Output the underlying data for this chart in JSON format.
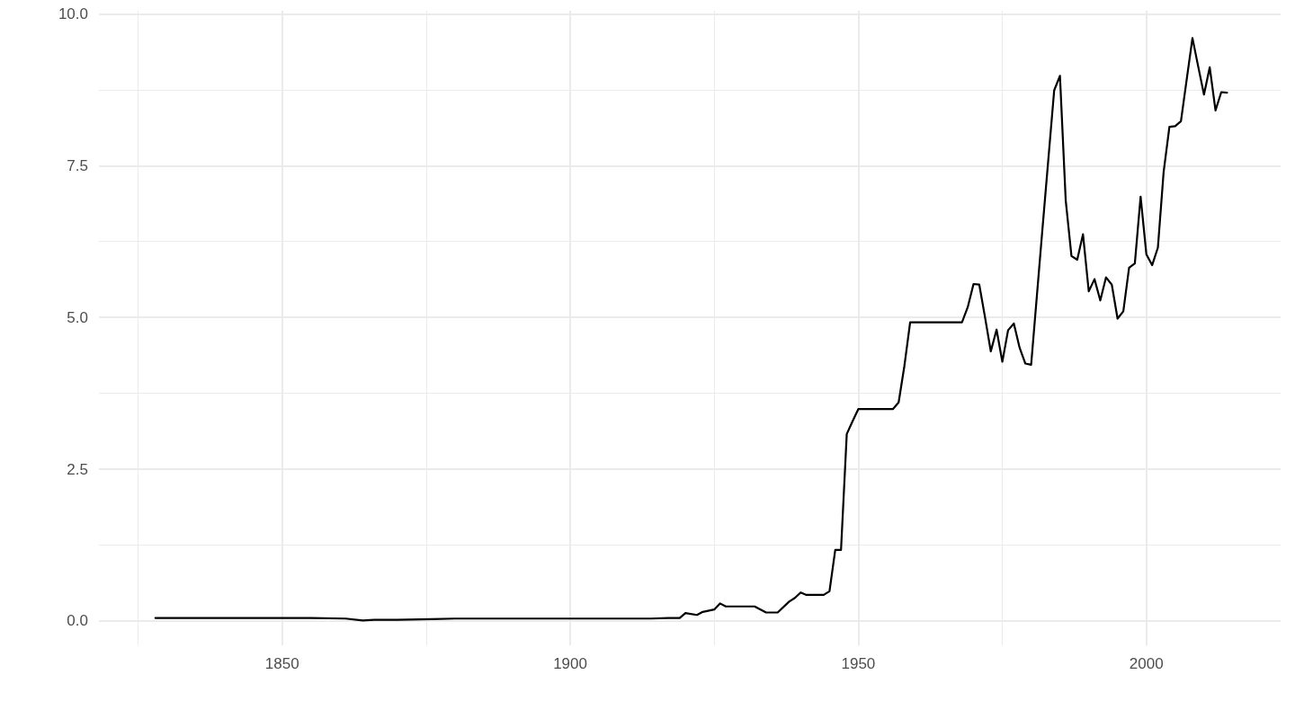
{
  "chart_data": {
    "type": "line",
    "x": [
      1828,
      1835,
      1845,
      1855,
      1861,
      1864,
      1866,
      1870,
      1876,
      1880,
      1900,
      1914,
      1917,
      1919,
      1920,
      1922,
      1923,
      1925,
      1926,
      1927,
      1932,
      1934,
      1936,
      1938,
      1939,
      1940,
      1941,
      1944,
      1945,
      1946,
      1947,
      1948,
      1949,
      1950,
      1956,
      1957,
      1958,
      1959,
      1968,
      1969,
      1970,
      1971,
      1972,
      1973,
      1974,
      1975,
      1976,
      1977,
      1978,
      1979,
      1980,
      1982,
      1984,
      1985,
      1986,
      1987,
      1988,
      1989,
      1990,
      1991,
      1992,
      1993,
      1994,
      1995,
      1996,
      1997,
      1998,
      1999,
      2000,
      2001,
      2002,
      2003,
      2004,
      2005,
      2006,
      2007,
      2008,
      2009,
      2010,
      2011,
      2012,
      2013,
      2014
    ],
    "series": [
      {
        "color": "#000000",
        "values": [
          0.05,
          0.05,
          0.05,
          0.05,
          0.04,
          0.01,
          0.02,
          0.02,
          0.03,
          0.04,
          0.04,
          0.04,
          0.05,
          0.05,
          0.13,
          0.1,
          0.15,
          0.19,
          0.29,
          0.24,
          0.24,
          0.14,
          0.14,
          0.32,
          0.38,
          0.47,
          0.43,
          0.43,
          0.49,
          1.17,
          1.17,
          3.08,
          3.29,
          3.49,
          3.49,
          3.6,
          4.2,
          4.92,
          4.92,
          5.17,
          5.55,
          5.54,
          5.0,
          4.44,
          4.8,
          4.27,
          4.79,
          4.9,
          4.5,
          4.24,
          4.22,
          6.5,
          8.74,
          8.98,
          6.93,
          6.01,
          5.95,
          6.37,
          5.43,
          5.63,
          5.28,
          5.66,
          5.54,
          4.98,
          5.1,
          5.82,
          5.89,
          6.99,
          6.04,
          5.86,
          6.15,
          7.4,
          8.14,
          8.15,
          8.23,
          8.92,
          9.6,
          9.13,
          8.67,
          9.12,
          8.41,
          8.71,
          8.7
        ]
      }
    ],
    "xlim": [
      1818.2,
      2023.3
    ],
    "xticks": [
      1850,
      1900,
      1950,
      2000
    ],
    "ylim": [
      -0.4,
      10.05
    ],
    "yticks": [
      {
        "value": 0,
        "label": "0.0"
      },
      2.5,
      {
        "value": 5,
        "label": "5.0"
      },
      7.5,
      {
        "value": 10,
        "label": "10.0"
      }
    ],
    "grid": true,
    "marker": "none",
    "line_style": "solid"
  }
}
